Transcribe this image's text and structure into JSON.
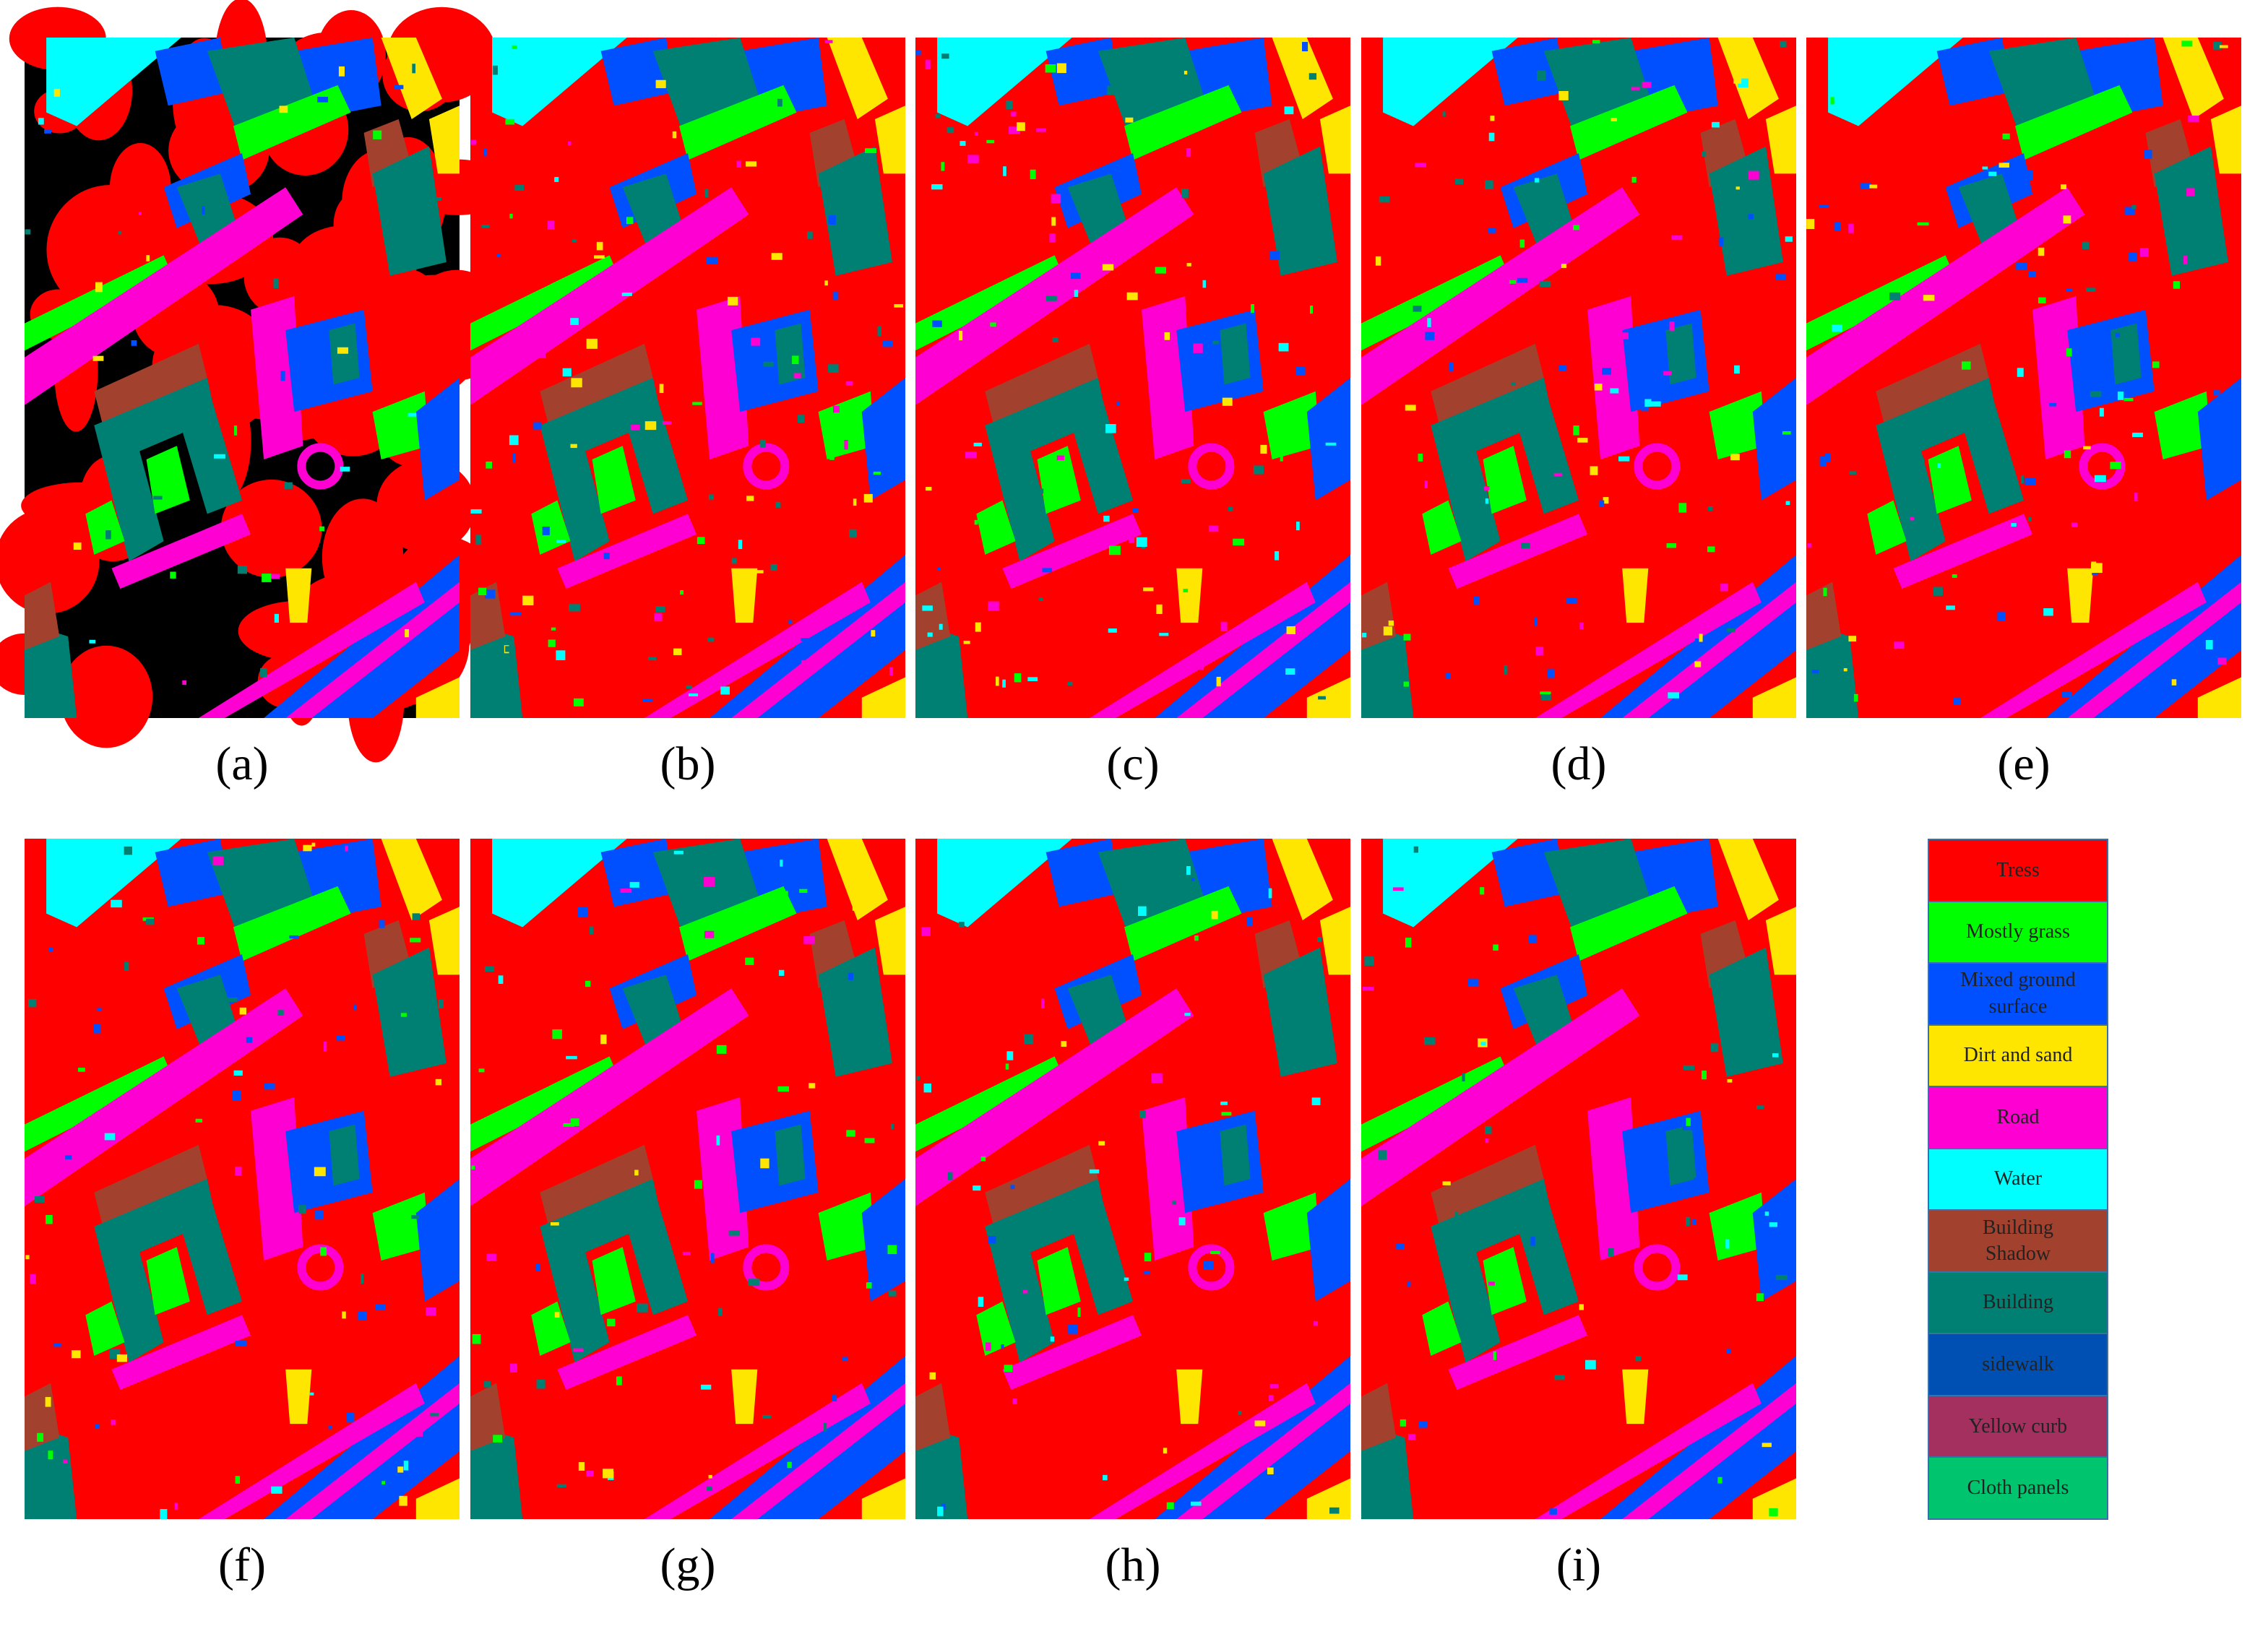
{
  "panels": [
    {
      "label": "(a)"
    },
    {
      "label": "(b)"
    },
    {
      "label": "(c)"
    },
    {
      "label": "(d)"
    },
    {
      "label": "(e)"
    },
    {
      "label": "(f)"
    },
    {
      "label": "(g)"
    },
    {
      "label": "(h)"
    },
    {
      "label": "(i)"
    }
  ],
  "legend": [
    {
      "name": "Tress",
      "color": "#ff0000"
    },
    {
      "name": "Mostly grass",
      "color": "#00ff00"
    },
    {
      "name": "Mixed ground surface",
      "color": "#0050ff"
    },
    {
      "name": "Dirt and sand",
      "color": "#ffe600"
    },
    {
      "name": "Road",
      "color": "#ff00d2"
    },
    {
      "name": "Water",
      "color": "#00ffff"
    },
    {
      "name": "Building Shadow",
      "color": "#a2422e"
    },
    {
      "name": "Building",
      "color": "#008072"
    },
    {
      "name": "sidewalk",
      "color": "#0050b4"
    },
    {
      "name": "Yellow curb",
      "color": "#a3305e"
    },
    {
      "name": "Cloth panels",
      "color": "#00c46e"
    }
  ]
}
